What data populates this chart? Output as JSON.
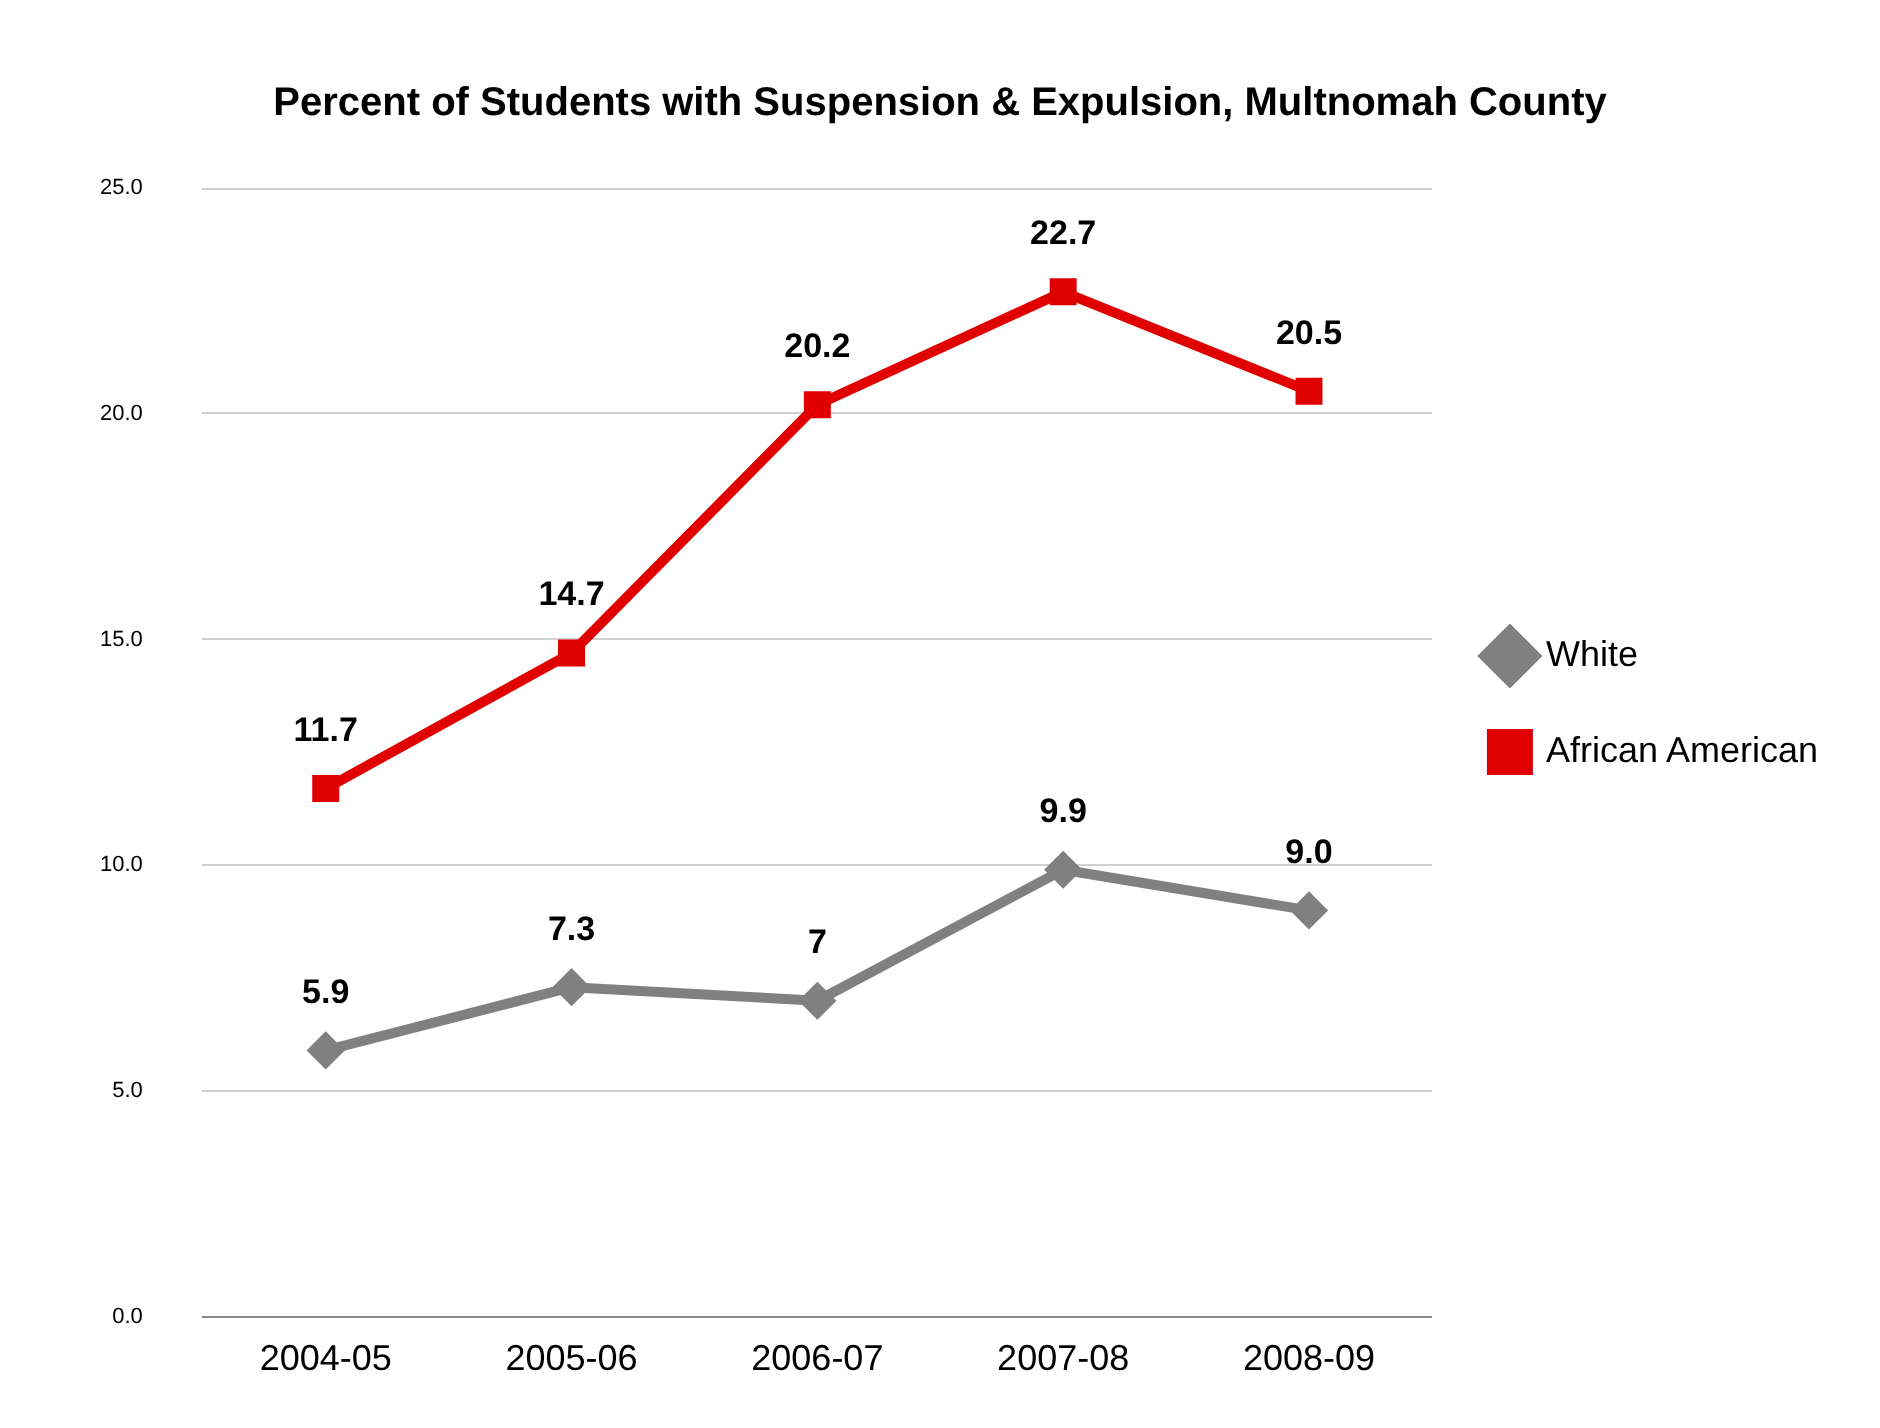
{
  "chart_data": {
    "type": "line",
    "title": "Percent of Students with Suspension & Expulsion, Multnomah County",
    "categories": [
      "2004-05",
      "2005-06",
      "2006-07",
      "2007-08",
      "2008-09"
    ],
    "series": [
      {
        "name": "White",
        "color": "#808080",
        "marker": "diamond",
        "values": [
          5.9,
          7.3,
          7,
          9.9,
          9.0
        ],
        "value_labels": [
          "5.9",
          "7.3",
          "7",
          "9.9",
          "9.0"
        ]
      },
      {
        "name": "African American",
        "color": "#e00000",
        "marker": "square",
        "values": [
          11.7,
          14.7,
          20.2,
          22.7,
          20.5
        ],
        "value_labels": [
          "11.7",
          "14.7",
          "20.2",
          "22.7",
          "20.5"
        ]
      }
    ],
    "ylim": [
      0,
      25
    ],
    "yticks": [
      {
        "value": 0,
        "label": "0.0"
      },
      {
        "value": 5,
        "label": "5.0"
      },
      {
        "value": 10,
        "label": "10.0"
      },
      {
        "value": 15,
        "label": "15.0"
      },
      {
        "value": 20,
        "label": "20.0"
      },
      {
        "value": 25,
        "label": "25.0"
      }
    ],
    "grid": "y",
    "legend": "right",
    "line_style": "solid"
  }
}
